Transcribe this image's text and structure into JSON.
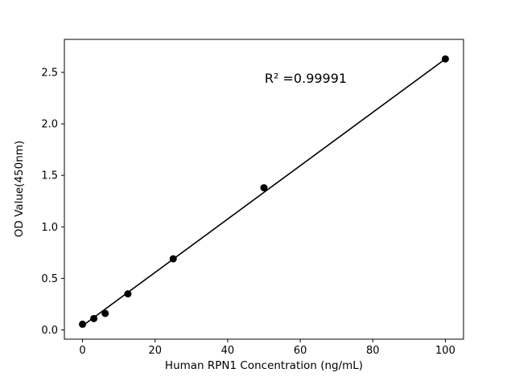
{
  "chart_data": {
    "type": "scatter",
    "title": "",
    "xlabel": "Human RPN1 Concentration (ng/mL)",
    "ylabel": "OD Value(450nm)",
    "annotation": "R² =0.99991",
    "x": [
      0,
      3.125,
      6.25,
      12.5,
      25,
      50,
      100
    ],
    "y": [
      0.055,
      0.11,
      0.16,
      0.35,
      0.69,
      1.38,
      2.63
    ],
    "fit_line": {
      "x1": 0,
      "y1": 0.04,
      "x2": 100,
      "y2": 2.63
    },
    "xlim": [
      -5,
      105
    ],
    "ylim": [
      -0.09,
      2.82
    ],
    "xticks": [
      0,
      20,
      40,
      60,
      80,
      100
    ],
    "xtick_labels": [
      "0",
      "20",
      "40",
      "60",
      "80",
      "100"
    ],
    "yticks": [
      0.0,
      0.5,
      1.0,
      1.5,
      2.0,
      2.5
    ],
    "ytick_labels": [
      "0.0",
      "0.5",
      "1.0",
      "1.5",
      "2.0",
      "2.5"
    ],
    "legend": null,
    "grid": false,
    "colors": {
      "marker": "#000000",
      "line": "#000000",
      "axis": "#000000",
      "background": "#ffffff"
    }
  }
}
